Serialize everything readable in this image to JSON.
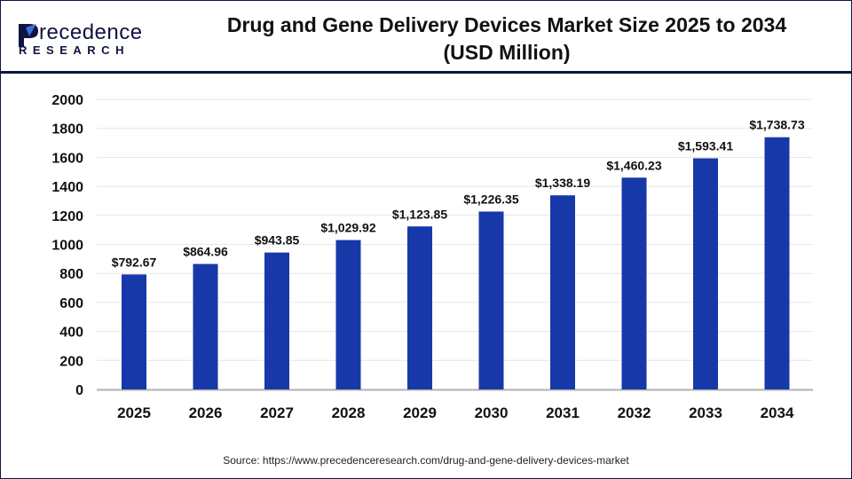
{
  "brand": {
    "name_line1": "Precedence",
    "name_line2": "RESEARCH"
  },
  "title_line1": "Drug and Gene Delivery Devices Market Size 2025 to 2034",
  "title_line2": "(USD Million)",
  "source": "Source: https://www.precedenceresearch.com/drug-and-gene-delivery-devices-market",
  "colors": {
    "bar": "#1738a8",
    "border": "#0d1440",
    "grid": "#e6e6e6",
    "axis": "#b0b0b0"
  },
  "chart_data": {
    "type": "bar",
    "title": "Drug and Gene Delivery Devices Market Size 2025 to 2034 (USD Million)",
    "categories": [
      "2025",
      "2026",
      "2027",
      "2028",
      "2029",
      "2030",
      "2031",
      "2032",
      "2033",
      "2034"
    ],
    "values": [
      792.67,
      864.96,
      943.85,
      1029.92,
      1123.85,
      1226.35,
      1338.19,
      1460.23,
      1593.41,
      1738.73
    ],
    "data_labels": [
      "$792.67",
      "$864.96",
      "$943.85",
      "$1,029.92",
      "$1,123.85",
      "$1,226.35",
      "$1,338.19",
      "$1,460.23",
      "$1,593.41",
      "$1,738.73"
    ],
    "yticks": [
      "0",
      "200",
      "400",
      "600",
      "800",
      "1000",
      "1200",
      "1400",
      "1600",
      "1800",
      "2000"
    ],
    "ylim": [
      0,
      2000
    ],
    "grid": true,
    "legend": "none"
  }
}
